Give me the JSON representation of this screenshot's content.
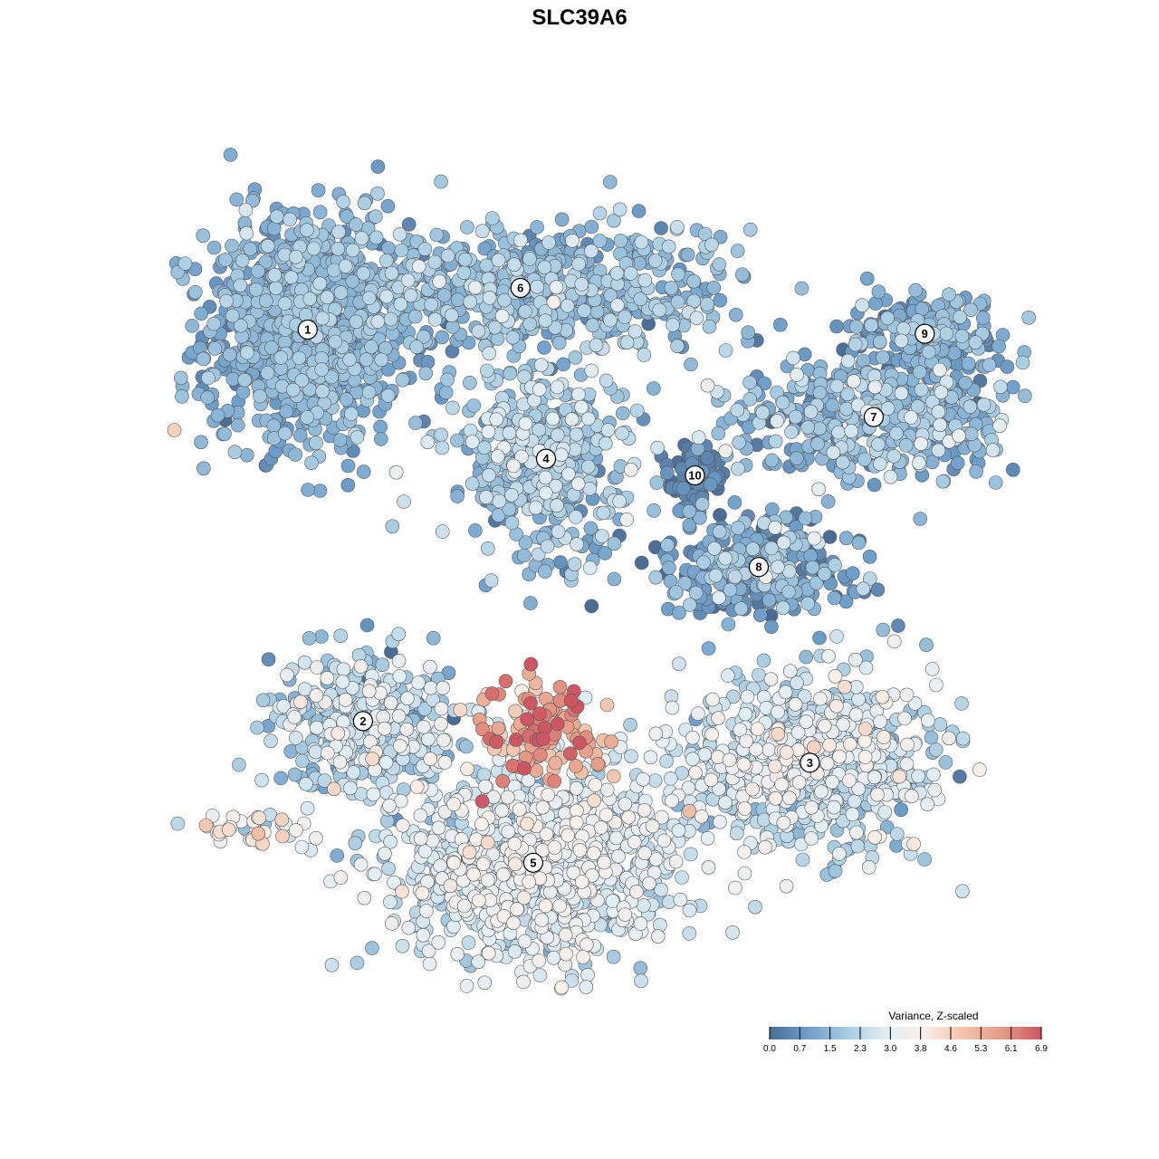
{
  "chart_data": {
    "type": "scatter",
    "title": "SLC39A6",
    "xlabel": "",
    "ylabel": "",
    "grid": false,
    "legend_position": "bottom-right",
    "colorbar": {
      "title": "Variance, Z-scaled",
      "range": [
        0.0,
        6.9
      ],
      "ticks": [
        "0.0",
        "0.7",
        "1.5",
        "2.3",
        "3.0",
        "3.8",
        "4.6",
        "5.3",
        "6.1",
        "6.9"
      ],
      "colors": [
        "#4a6c95",
        "#6f9fcb",
        "#a8cce2",
        "#e3eef5",
        "#f9efe9",
        "#f3c2ab",
        "#e59a84",
        "#cd5662"
      ]
    },
    "clusters": [
      {
        "label": "1",
        "x": -0.66,
        "y": 0.6,
        "sx": 0.12,
        "sy": 0.14,
        "n": 950,
        "mean": 1.35,
        "sd": 0.4
      },
      {
        "label": "2",
        "x": -0.53,
        "y": -0.34,
        "sx": 0.11,
        "sy": 0.08,
        "n": 380,
        "mean": 2.2,
        "sd": 0.8
      },
      {
        "label": "3",
        "x": 0.52,
        "y": -0.44,
        "sx": 0.15,
        "sy": 0.1,
        "n": 800,
        "mean": 2.5,
        "sd": 0.7
      },
      {
        "label": "4",
        "x": -0.1,
        "y": 0.29,
        "sx": 0.1,
        "sy": 0.11,
        "n": 420,
        "mean": 1.8,
        "sd": 0.6
      },
      {
        "label": "5",
        "x": -0.13,
        "y": -0.68,
        "sx": 0.17,
        "sy": 0.12,
        "n": 1000,
        "mean": 2.8,
        "sd": 0.55
      },
      {
        "label": "6",
        "x": -0.16,
        "y": 0.7,
        "sx": 0.25,
        "sy": 0.08,
        "n": 650,
        "mean": 1.6,
        "sd": 0.55
      },
      {
        "label": "7",
        "x": 0.67,
        "y": 0.39,
        "sx": 0.18,
        "sy": 0.07,
        "n": 420,
        "mean": 1.5,
        "sd": 0.6
      },
      {
        "label": "8",
        "x": 0.4,
        "y": 0.03,
        "sx": 0.12,
        "sy": 0.06,
        "n": 320,
        "mean": 1.2,
        "sd": 0.8
      },
      {
        "label": "9",
        "x": 0.79,
        "y": 0.59,
        "sx": 0.1,
        "sy": 0.05,
        "n": 200,
        "mean": 1.2,
        "sd": 0.5
      },
      {
        "label": "10",
        "x": 0.25,
        "y": 0.25,
        "sx": 0.03,
        "sy": 0.04,
        "n": 80,
        "mean": 0.35,
        "sd": 0.25
      }
    ],
    "hotspot": {
      "x": -0.12,
      "y": -0.37,
      "sx": 0.07,
      "sy": 0.06,
      "n": 130,
      "mean": 5.5,
      "sd": 1.0
    },
    "islands": [
      {
        "x": -0.8,
        "y": -0.6,
        "sx": 0.07,
        "sy": 0.025,
        "n": 35,
        "mean": 3.6,
        "sd": 0.8
      },
      {
        "x": -1.0,
        "y": 0.36,
        "sx": 0.01,
        "sy": 0.02,
        "n": 8,
        "mean": 4.5,
        "sd": 0.5
      }
    ]
  }
}
